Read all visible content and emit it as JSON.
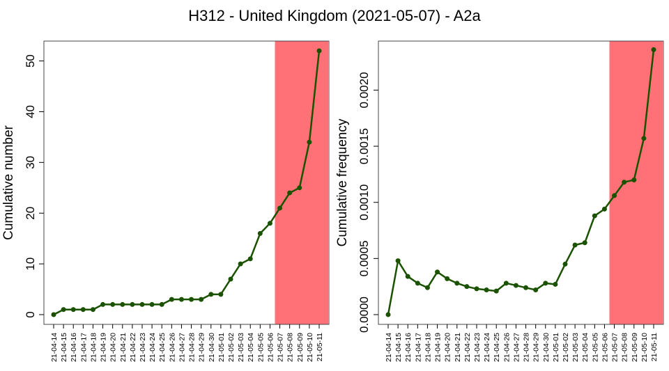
{
  "title": "H312 - United Kingdom (2021-05-07) - A2a",
  "colors": {
    "line": "#1a5200",
    "highlight": "#ff7177"
  },
  "chart_data": [
    {
      "type": "line",
      "ylabel": "Cumulative number",
      "ylim": [
        0,
        52
      ],
      "yticks": [
        "0",
        "10",
        "20",
        "30",
        "40",
        "50"
      ],
      "ytick_values": [
        0,
        10,
        20,
        30,
        40,
        50
      ],
      "x": [
        "21-04-14",
        "21-04-15",
        "21-04-16",
        "21-04-17",
        "21-04-18",
        "21-04-19",
        "21-04-20",
        "21-04-21",
        "21-04-22",
        "21-04-23",
        "21-04-24",
        "21-04-25",
        "21-04-26",
        "21-04-27",
        "21-04-28",
        "21-04-29",
        "21-04-30",
        "21-05-01",
        "21-05-02",
        "21-05-03",
        "21-05-04",
        "21-05-05",
        "21-05-06",
        "21-05-07",
        "21-05-08",
        "21-05-09",
        "21-05-10",
        "21-05-11"
      ],
      "values": [
        0,
        1,
        1,
        1,
        1,
        2,
        2,
        2,
        2,
        2,
        2,
        2,
        3,
        3,
        3,
        3,
        4,
        4,
        7,
        10,
        11,
        16,
        18,
        21,
        24,
        25,
        34,
        52
      ],
      "highlight_range": [
        "21-05-07",
        "21-05-11"
      ]
    },
    {
      "type": "line",
      "ylabel": "Cumulative frequency",
      "ylim": [
        0,
        0.00235
      ],
      "yticks": [
        "0.0000",
        "0.0005",
        "0.0010",
        "0.0015",
        "0.0020"
      ],
      "ytick_values": [
        0,
        0.0005,
        0.001,
        0.0015,
        0.002
      ],
      "x": [
        "21-04-14",
        "21-04-15",
        "21-04-16",
        "21-04-17",
        "21-04-18",
        "21-04-19",
        "21-04-20",
        "21-04-21",
        "21-04-22",
        "21-04-23",
        "21-04-24",
        "21-04-25",
        "21-04-26",
        "21-04-27",
        "21-04-28",
        "21-04-29",
        "21-04-30",
        "21-05-01",
        "21-05-02",
        "21-05-03",
        "21-05-04",
        "21-05-05",
        "21-05-06",
        "21-05-07",
        "21-05-08",
        "21-05-09",
        "21-05-10",
        "21-05-11"
      ],
      "values": [
        0,
        0.00048,
        0.00034,
        0.00028,
        0.00024,
        0.00038,
        0.00032,
        0.00028,
        0.00025,
        0.00023,
        0.00022,
        0.00021,
        0.00028,
        0.00026,
        0.00024,
        0.00022,
        0.00028,
        0.00027,
        0.00045,
        0.00062,
        0.00064,
        0.00088,
        0.00094,
        0.00106,
        0.00118,
        0.0012,
        0.00157,
        0.00236
      ],
      "highlight_range": [
        "21-05-07",
        "21-05-11"
      ]
    }
  ]
}
